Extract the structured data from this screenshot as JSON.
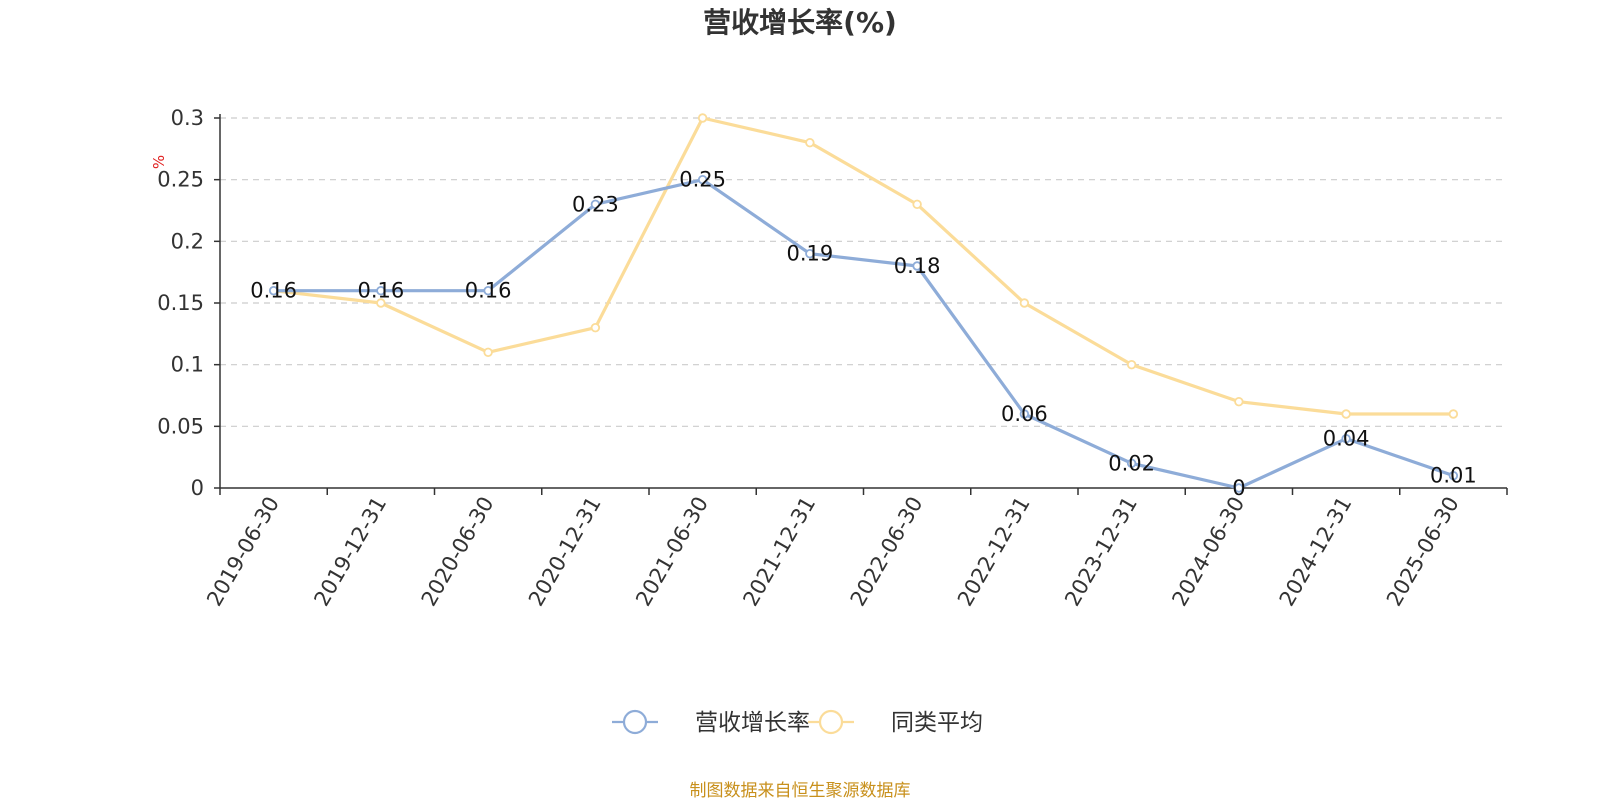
{
  "chart_data": {
    "type": "line",
    "title": "营收增长率(%)",
    "ylabel": "%",
    "xlabel": "",
    "categories": [
      "2019-06-30",
      "2019-12-31",
      "2020-06-30",
      "2020-12-31",
      "2021-06-30",
      "2021-12-31",
      "2022-06-30",
      "2022-12-31",
      "2023-12-31",
      "2024-06-30",
      "2024-12-31",
      "2025-06-30"
    ],
    "series": [
      {
        "name": "营收增长率",
        "color": "#8eacd8",
        "values": [
          0.16,
          0.16,
          0.16,
          0.23,
          0.25,
          0.19,
          0.18,
          0.06,
          0.02,
          0,
          0.04,
          0.01
        ],
        "data_labels": [
          "0.16",
          "0.16",
          "0.16",
          "0.23",
          "0.25",
          "0.19",
          "0.18",
          "0.06",
          "0.02",
          "0",
          "0.04",
          "0.01"
        ]
      },
      {
        "name": "同类平均",
        "color": "#fbdc99",
        "values": [
          0.16,
          0.15,
          0.11,
          0.13,
          0.3,
          0.28,
          0.23,
          0.15,
          0.1,
          0.07,
          0.06,
          0.06
        ]
      }
    ],
    "ylim": [
      0,
      0.3
    ],
    "yticks": [
      0,
      0.05,
      0.1,
      0.15,
      0.2,
      0.25,
      0.3
    ],
    "ytick_labels": [
      "0",
      "0.05",
      "0.1",
      "0.15",
      "0.2",
      "0.25",
      "0.3"
    ],
    "grid": true,
    "legend_position": "bottom-center"
  },
  "footer": {
    "source": "制图数据来自恒生聚源数据库"
  }
}
